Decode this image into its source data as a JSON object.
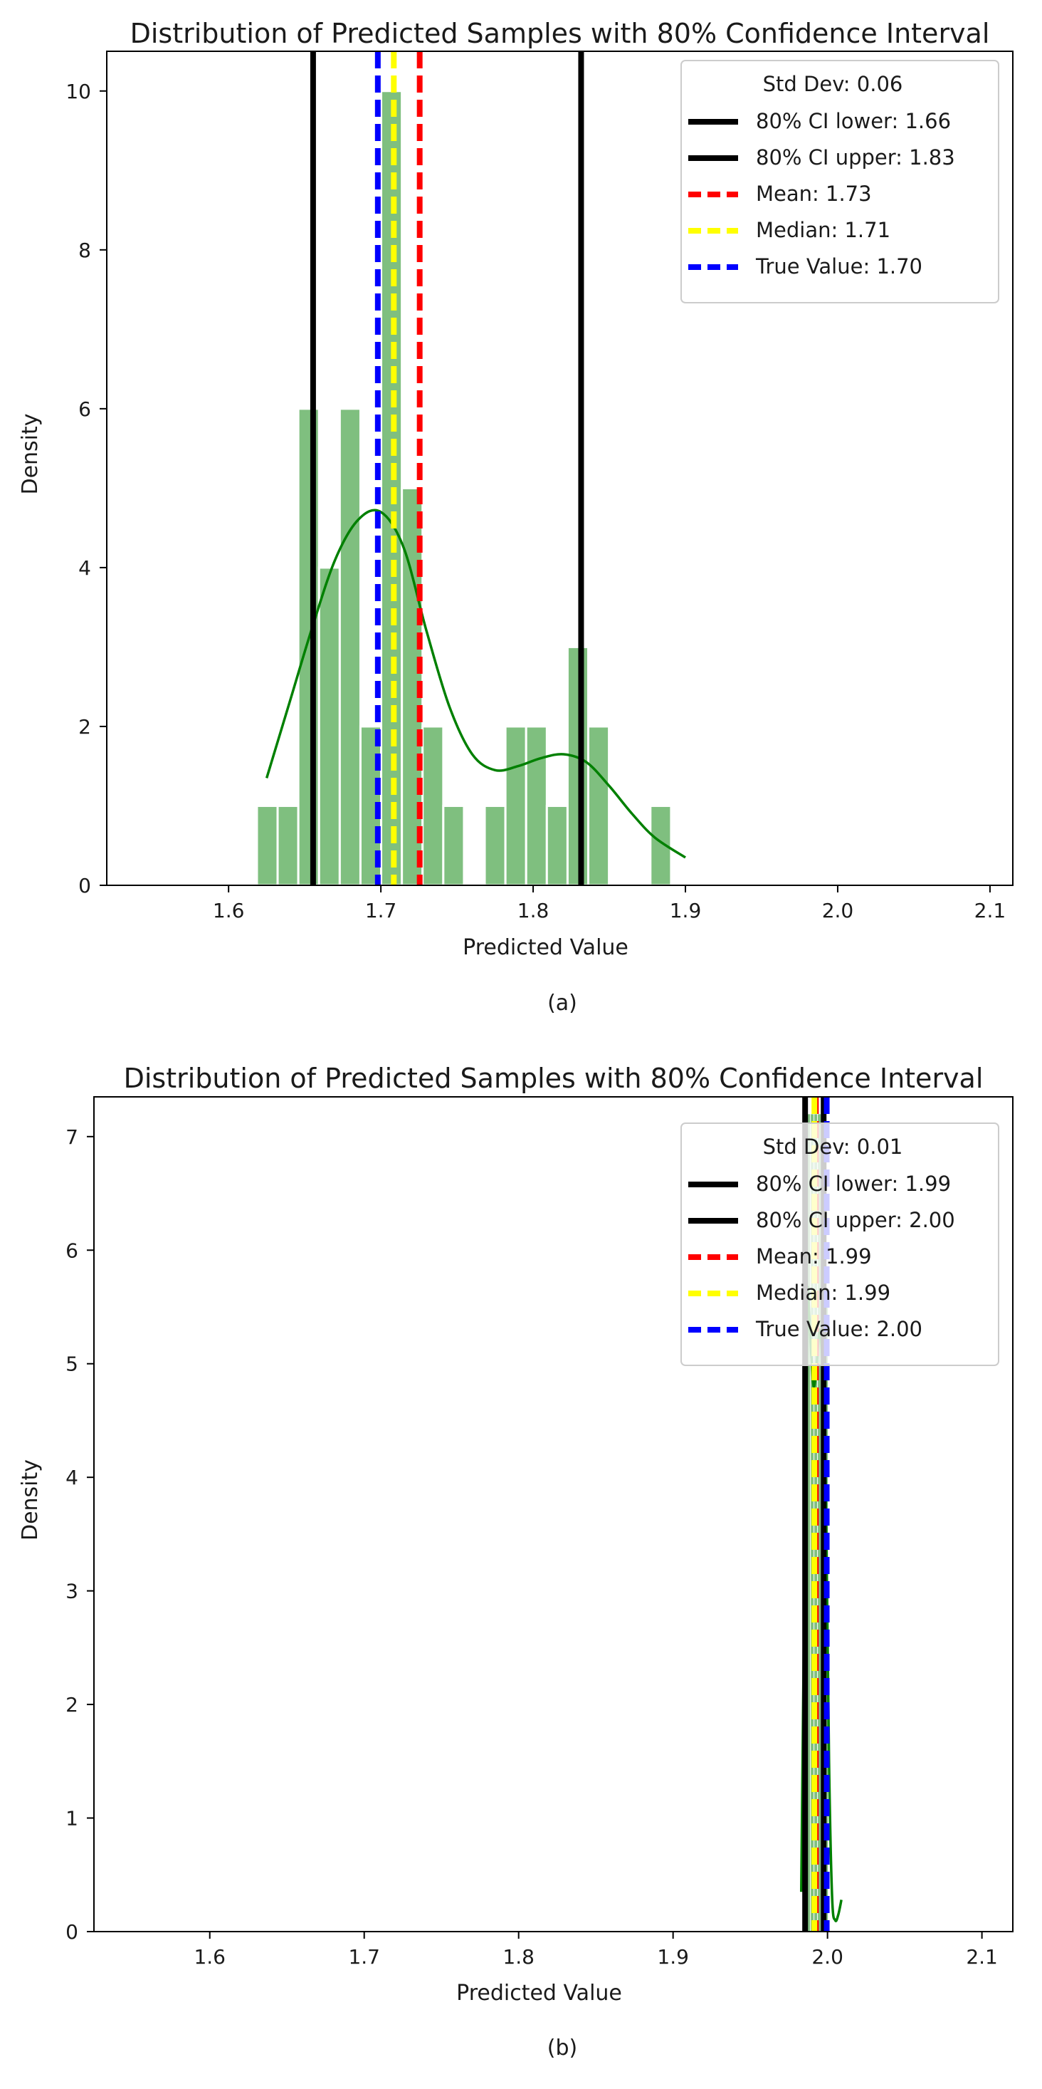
{
  "chart_data": [
    {
      "type": "histogram",
      "caption": "(a)",
      "title": "Distribution of Predicted Samples with 80% Confidence Interval",
      "xlabel": "Predicted Value",
      "ylabel": "Density",
      "xlim": [
        1.52,
        2.115
      ],
      "ylim": [
        0,
        10.5
      ],
      "xticks": [
        "1.6",
        "1.7",
        "1.8",
        "1.9",
        "2.0",
        "2.1"
      ],
      "yticks": [
        "0",
        "2",
        "4",
        "6",
        "8",
        "10"
      ],
      "bin_width": 0.0136,
      "bars": [
        {
          "x": 1.6254,
          "value": 1
        },
        {
          "x": 1.639,
          "value": 1
        },
        {
          "x": 1.6526,
          "value": 6
        },
        {
          "x": 1.6662,
          "value": 4
        },
        {
          "x": 1.6798,
          "value": 6
        },
        {
          "x": 1.6934,
          "value": 2
        },
        {
          "x": 1.707,
          "value": 10
        },
        {
          "x": 1.7206,
          "value": 5
        },
        {
          "x": 1.7342,
          "value": 2
        },
        {
          "x": 1.7478,
          "value": 1
        },
        {
          "x": 1.775,
          "value": 1
        },
        {
          "x": 1.7886,
          "value": 2
        },
        {
          "x": 1.8022,
          "value": 2
        },
        {
          "x": 1.8158,
          "value": 1
        },
        {
          "x": 1.8294,
          "value": 3
        },
        {
          "x": 1.843,
          "value": 2
        },
        {
          "x": 1.8838,
          "value": 1
        }
      ],
      "kde": {
        "x": [
          1.625,
          1.64,
          1.655,
          1.67,
          1.685,
          1.7,
          1.715,
          1.73,
          1.745,
          1.76,
          1.775,
          1.79,
          1.805,
          1.82,
          1.835,
          1.85,
          1.865,
          1.88,
          1.9
        ],
        "y": [
          1.35,
          2.3,
          3.25,
          4.1,
          4.6,
          4.7,
          4.25,
          3.2,
          2.25,
          1.65,
          1.45,
          1.5,
          1.6,
          1.65,
          1.55,
          1.25,
          0.9,
          0.6,
          0.35
        ]
      },
      "legend_title": "Std Dev: 0.06",
      "legend_position": "upper right",
      "series": [
        {
          "name": "80% CI lower: 1.66",
          "x": 1.6555,
          "color": "#000000",
          "style": "solid"
        },
        {
          "name": "80% CI upper: 1.83",
          "x": 1.8315,
          "color": "#000000",
          "style": "solid"
        },
        {
          "name": "Mean: 1.73",
          "x": 1.7255,
          "color": "#ff0000",
          "style": "dashed"
        },
        {
          "name": "Median: 1.71",
          "x": 1.7085,
          "color": "#ffff00",
          "style": "dashed"
        },
        {
          "name": "True Value: 1.70",
          "x": 1.698,
          "color": "#0000ff",
          "style": "dashed"
        }
      ],
      "bar_color": "#7fbf7f",
      "kde_color": "#008000"
    },
    {
      "type": "histogram",
      "caption": "(b)",
      "title": "Distribution of Predicted Samples with 80% Confidence Interval",
      "xlabel": "Predicted Value",
      "ylabel": "Density",
      "xlim": [
        1.525,
        2.12
      ],
      "ylim": [
        0,
        7.35
      ],
      "xticks": [
        "1.6",
        "1.7",
        "1.8",
        "1.9",
        "2.0",
        "2.1"
      ],
      "yticks": [
        "0",
        "1",
        "2",
        "3",
        "4",
        "5",
        "6",
        "7"
      ],
      "bin_width": 0.0023,
      "bars": [
        {
          "x": 1.9855,
          "value": 5.2
        },
        {
          "x": 1.9878,
          "value": 7.2
        },
        {
          "x": 1.9901,
          "value": 7.2
        },
        {
          "x": 1.9924,
          "value": 7.2
        },
        {
          "x": 1.9947,
          "value": 7.2
        },
        {
          "x": 1.997,
          "value": 7.2
        },
        {
          "x": 1.9993,
          "value": 5.5
        }
      ],
      "kde": {
        "x": [
          1.983,
          1.985,
          1.987,
          1.9875,
          1.989,
          1.991,
          1.993,
          1.995,
          1.997,
          1.999,
          2.001,
          2.003,
          2.005,
          2.007,
          2.009
        ],
        "y": [
          0.35,
          3.0,
          5.4,
          5.6,
          5.2,
          4.8,
          5.0,
          5.3,
          4.9,
          3.8,
          1.5,
          0.3,
          0.1,
          0.15,
          0.28
        ]
      },
      "legend_title": "Std Dev: 0.01",
      "legend_position": "upper right",
      "series": [
        {
          "name": "80% CI lower: 1.99",
          "x": 1.9855,
          "color": "#000000",
          "style": "solid"
        },
        {
          "name": "80% CI upper: 2.00",
          "x": 1.9975,
          "color": "#000000",
          "style": "solid"
        },
        {
          "name": "Mean: 1.99",
          "x": 1.9925,
          "color": "#ff0000",
          "style": "dashed"
        },
        {
          "name": "Median: 1.99",
          "x": 1.9915,
          "color": "#ffff00",
          "style": "dashed"
        },
        {
          "name": "True Value: 2.00",
          "x": 1.9995,
          "color": "#0000ff",
          "style": "dashed"
        }
      ],
      "bar_color": "#7fbf7f",
      "kde_color": "#008000"
    }
  ]
}
